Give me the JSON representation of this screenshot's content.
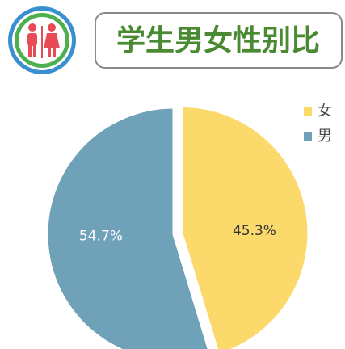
{
  "chart_data": {
    "type": "pie",
    "title": "学生男女性别比",
    "categories": [
      "女",
      "男"
    ],
    "values": [
      45.3,
      54.7
    ],
    "value_labels": [
      "45.3%",
      "54.7%"
    ],
    "colors": [
      "#fcd96b",
      "#6fa1b9"
    ],
    "legend": "top-right"
  }
}
